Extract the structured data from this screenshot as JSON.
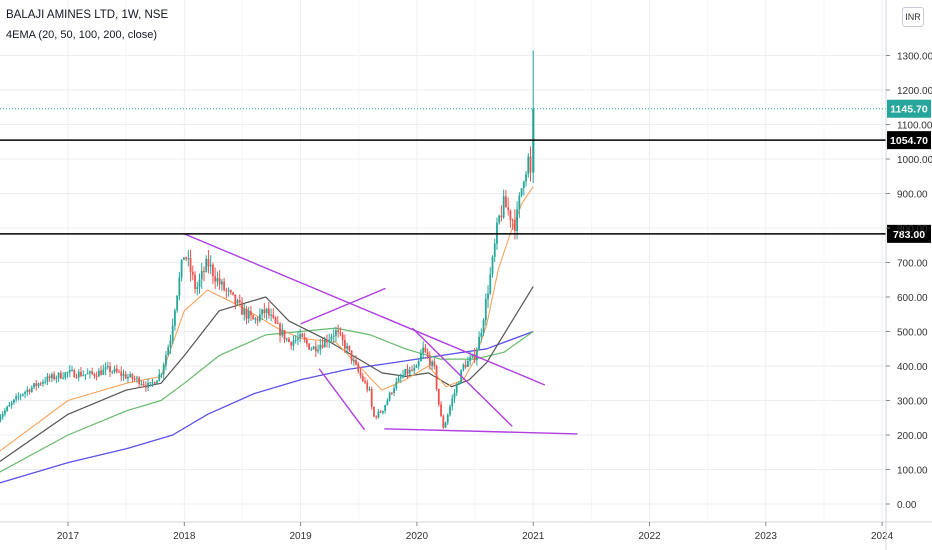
{
  "header": {
    "title": "BALAJI AMINES LTD, 1W, NSE",
    "indicator": "4EMA (20, 50, 100, 200, close)",
    "currency": "INR"
  },
  "chart_data": {
    "type": "candlestick",
    "timeframe": "1W",
    "xlim": [
      2016.4,
      2024.15
    ],
    "ylim": [
      -30,
      1450
    ],
    "x_ticks": [
      2017,
      2018,
      2019,
      2020,
      2021,
      2022,
      2023,
      2024
    ],
    "y_ticks": [
      0,
      100,
      200,
      300,
      400,
      500,
      600,
      700,
      800,
      900,
      1000,
      1100,
      1200,
      1300
    ],
    "y_tick_labels": [
      "0.00",
      "100.00",
      "200.00",
      "300.00",
      "400.00",
      "500.00",
      "600.00",
      "700.00",
      "800.00",
      "900.00",
      "1000.00",
      "1100.00",
      "1200.00",
      "1300.00"
    ],
    "colors": {
      "up": "#26a69a",
      "down": "#ef5350",
      "ema20": "#f7a35c",
      "ema50": "#555555",
      "ema100": "#66bb6a",
      "ema200": "#5b52e8",
      "trendline": "#b03ee0",
      "last_price": "#26a69a"
    },
    "last_price": {
      "value": 1145.7,
      "label": "1145.70"
    },
    "horizontal_levels": [
      {
        "value": 1054.7,
        "label": "1054.70",
        "color": "#000000"
      },
      {
        "value": 783,
        "label": "783.00",
        "color": "#000000"
      }
    ],
    "price_path": [
      [
        2016.4,
        250
      ],
      [
        2016.6,
        320
      ],
      [
        2016.8,
        360
      ],
      [
        2017.0,
        380
      ],
      [
        2017.2,
        375
      ],
      [
        2017.35,
        390
      ],
      [
        2017.5,
        370
      ],
      [
        2017.6,
        360
      ],
      [
        2017.7,
        340
      ],
      [
        2017.8,
        380
      ],
      [
        2017.88,
        480
      ],
      [
        2017.93,
        600
      ],
      [
        2018.0,
        730
      ],
      [
        2018.05,
        680
      ],
      [
        2018.1,
        620
      ],
      [
        2018.2,
        700
      ],
      [
        2018.3,
        640
      ],
      [
        2018.4,
        600
      ],
      [
        2018.5,
        560
      ],
      [
        2018.6,
        530
      ],
      [
        2018.7,
        560
      ],
      [
        2018.8,
        510
      ],
      [
        2018.9,
        470
      ],
      [
        2019.0,
        480
      ],
      [
        2019.1,
        450
      ],
      [
        2019.2,
        470
      ],
      [
        2019.3,
        500
      ],
      [
        2019.4,
        450
      ],
      [
        2019.5,
        380
      ],
      [
        2019.6,
        320
      ],
      [
        2019.62,
        250
      ],
      [
        2019.7,
        270
      ],
      [
        2019.8,
        340
      ],
      [
        2019.9,
        380
      ],
      [
        2020.0,
        390
      ],
      [
        2020.05,
        450
      ],
      [
        2020.15,
        390
      ],
      [
        2020.2,
        260
      ],
      [
        2020.23,
        220
      ],
      [
        2020.3,
        300
      ],
      [
        2020.4,
        400
      ],
      [
        2020.5,
        430
      ],
      [
        2020.55,
        500
      ],
      [
        2020.6,
        600
      ],
      [
        2020.65,
        700
      ],
      [
        2020.7,
        820
      ],
      [
        2020.75,
        870
      ],
      [
        2020.85,
        810
      ],
      [
        2020.92,
        960
      ],
      [
        2020.96,
        1000
      ],
      [
        2020.98,
        940
      ],
      [
        2021.0,
        1145.7
      ]
    ],
    "ema20": [
      [
        2016.4,
        150
      ],
      [
        2017.0,
        300
      ],
      [
        2017.5,
        350
      ],
      [
        2017.8,
        370
      ],
      [
        2018.0,
        560
      ],
      [
        2018.2,
        620
      ],
      [
        2018.5,
        570
      ],
      [
        2018.8,
        510
      ],
      [
        2019.0,
        480
      ],
      [
        2019.3,
        470
      ],
      [
        2019.5,
        400
      ],
      [
        2019.7,
        330
      ],
      [
        2019.9,
        360
      ],
      [
        2020.1,
        400
      ],
      [
        2020.25,
        340
      ],
      [
        2020.4,
        360
      ],
      [
        2020.5,
        420
      ],
      [
        2020.6,
        520
      ],
      [
        2020.7,
        680
      ],
      [
        2020.8,
        780
      ],
      [
        2020.9,
        870
      ],
      [
        2021.0,
        920
      ]
    ],
    "ema50": [
      [
        2016.4,
        120
      ],
      [
        2017.0,
        260
      ],
      [
        2017.5,
        330
      ],
      [
        2017.8,
        350
      ],
      [
        2018.0,
        430
      ],
      [
        2018.3,
        560
      ],
      [
        2018.7,
        600
      ],
      [
        2018.9,
        530
      ],
      [
        2019.2,
        480
      ],
      [
        2019.5,
        420
      ],
      [
        2019.7,
        380
      ],
      [
        2019.9,
        370
      ],
      [
        2020.1,
        380
      ],
      [
        2020.3,
        340
      ],
      [
        2020.45,
        360
      ],
      [
        2020.6,
        410
      ],
      [
        2020.8,
        520
      ],
      [
        2021.0,
        630
      ]
    ],
    "ema100": [
      [
        2016.4,
        90
      ],
      [
        2017.0,
        200
      ],
      [
        2017.5,
        270
      ],
      [
        2017.8,
        300
      ],
      [
        2018.0,
        350
      ],
      [
        2018.3,
        430
      ],
      [
        2018.7,
        490
      ],
      [
        2019.0,
        500
      ],
      [
        2019.3,
        510
      ],
      [
        2019.6,
        490
      ],
      [
        2019.9,
        450
      ],
      [
        2020.2,
        420
      ],
      [
        2020.5,
        420
      ],
      [
        2020.75,
        440
      ],
      [
        2021.0,
        500
      ]
    ],
    "ema200": [
      [
        2016.4,
        60
      ],
      [
        2017.0,
        120
      ],
      [
        2017.5,
        160
      ],
      [
        2017.9,
        200
      ],
      [
        2018.2,
        260
      ],
      [
        2018.6,
        320
      ],
      [
        2019.0,
        360
      ],
      [
        2019.4,
        390
      ],
      [
        2019.8,
        410
      ],
      [
        2020.2,
        430
      ],
      [
        2020.6,
        450
      ],
      [
        2021.0,
        500
      ]
    ],
    "trendlines": [
      [
        [
          2018.0,
          783
        ],
        [
          2021.1,
          345
        ]
      ],
      [
        [
          2019.0,
          522
        ],
        [
          2019.73,
          625
        ]
      ],
      [
        [
          2019.16,
          392
        ],
        [
          2019.55,
          215
        ]
      ],
      [
        [
          2019.72,
          218
        ],
        [
          2021.38,
          203
        ]
      ],
      [
        [
          2019.96,
          510
        ],
        [
          2020.82,
          225
        ]
      ]
    ]
  }
}
